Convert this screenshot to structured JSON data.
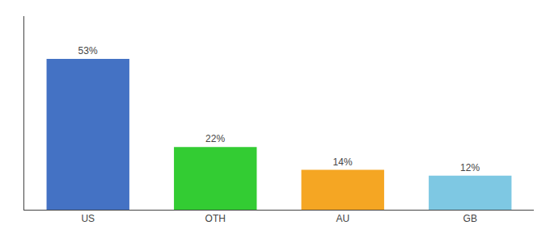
{
  "chart_data": {
    "type": "bar",
    "categories": [
      "US",
      "OTH",
      "AU",
      "GB"
    ],
    "values": [
      53,
      22,
      14,
      12
    ],
    "value_labels": [
      "53%",
      "22%",
      "14%",
      "12%"
    ],
    "colors": [
      "#4472c4",
      "#33cc33",
      "#f5a623",
      "#7ec8e3"
    ],
    "ylim": [
      0,
      68
    ],
    "data_labels": true,
    "tick_labels": "x",
    "grid": false
  }
}
